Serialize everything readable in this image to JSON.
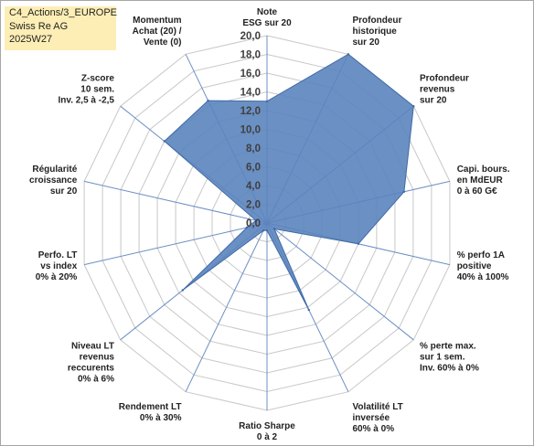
{
  "info": {
    "line1": "C4_Actions/3_EUROPE",
    "line2": "Swiss Re AG",
    "line3": "2025W27"
  },
  "chart_data": {
    "type": "radar",
    "title": "",
    "rmin": 0,
    "rmax": 20,
    "tick_step": 2,
    "tick_labels": [
      "0,0",
      "2,0",
      "4,0",
      "6,0",
      "8,0",
      "10,0",
      "12,0",
      "14,0",
      "16,0",
      "18,0",
      "20,0"
    ],
    "grid": true,
    "fill_color": "#5b84be",
    "edge_color": "#3f6aa6",
    "grid_color": "#c8c8c8",
    "axes": [
      {
        "label": [
          "Note",
          "ESG sur 20"
        ],
        "value": 13.0
      },
      {
        "label": [
          "Profondeur",
          "historique",
          "sur 20"
        ],
        "value": 20.0
      },
      {
        "label": [
          "Profondeur",
          "revenus",
          "sur 20"
        ],
        "value": 20.0
      },
      {
        "label": [
          "Capi. bours.",
          "en MdEUR",
          "0 à 60 G€"
        ],
        "value": 15.0
      },
      {
        "label": [
          "% perfo 1A",
          "positive",
          "40% à 100%"
        ],
        "value": 10.0
      },
      {
        "label": [
          "% perte max.",
          "sur 1 sem.",
          "Inv. 60% à 0%"
        ],
        "value": 1.0
      },
      {
        "label": [
          "Volatilité LT",
          "inversée",
          "60% à 0%"
        ],
        "value": 10.3
      },
      {
        "label": [
          "Ratio Sharpe",
          "0 à 2"
        ],
        "value": 0.8
      },
      {
        "label": [
          "Rendement LT",
          "0% à 30%"
        ],
        "value": 0.9
      },
      {
        "label": [
          "Niveau LT",
          "revenus",
          "reccurents",
          "0% à 6%"
        ],
        "value": 11.5
      },
      {
        "label": [
          "Perfo. LT",
          "vs index",
          "0% à 20%"
        ],
        "value": 2.2
      },
      {
        "label": [
          "Régularité",
          "croissance",
          "sur 20"
        ],
        "value": 1.2
      },
      {
        "label": [
          "Z-score",
          "10 sem.",
          "Inv. 2,5 à -2,5"
        ],
        "value": 14.0
      },
      {
        "label": [
          "Momentum",
          "Achat (20) /",
          "Vente (0)"
        ],
        "value": 14.5
      }
    ]
  }
}
